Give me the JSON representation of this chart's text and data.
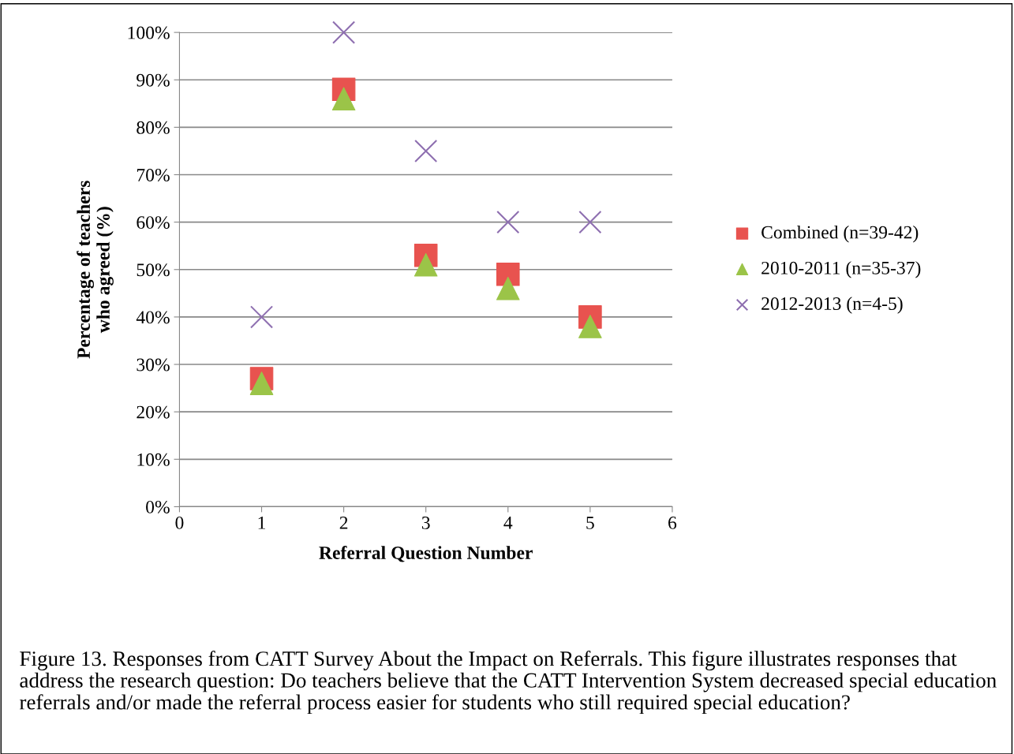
{
  "chart_data": {
    "type": "scatter",
    "xlabel": "Referral Question Number",
    "ylabel": "Percentage of teachers\nwho agreed (%)",
    "x": [
      1,
      2,
      3,
      4,
      5
    ],
    "series": [
      {
        "name": "Combined (n=39-42)",
        "color": "#e8534f",
        "marker": "square",
        "values": [
          27,
          88,
          53,
          49,
          40
        ]
      },
      {
        "name": "2010-2011 (n=35-37)",
        "color": "#9bc448",
        "marker": "triangle",
        "values": [
          26,
          86,
          51,
          46,
          38
        ]
      },
      {
        "name": "2012-2013 (n=4-5)",
        "color": "#8e6fb0",
        "marker": "cross",
        "values": [
          40,
          100,
          75,
          60,
          60
        ]
      }
    ],
    "xlim": [
      0,
      6
    ],
    "xticks": [
      0,
      1,
      2,
      3,
      4,
      5,
      6
    ],
    "ylim": [
      0,
      100
    ],
    "yticks": [
      {
        "value": 0,
        "label": "0%"
      },
      {
        "value": 10,
        "label": "10%"
      },
      {
        "value": 20,
        "label": "20%"
      },
      {
        "value": 30,
        "label": "30%"
      },
      {
        "value": 40,
        "label": "40%"
      },
      {
        "value": 50,
        "label": "50%"
      },
      {
        "value": 60,
        "label": "60%"
      },
      {
        "value": 70,
        "label": "70%"
      },
      {
        "value": 80,
        "label": "80%"
      },
      {
        "value": 90,
        "label": "90%"
      },
      {
        "value": 100,
        "label": "100%"
      }
    ],
    "grid": "y",
    "legend": "right",
    "annotations": [
      "Figure 13. Responses from CATT Survey About the Impact on Referrals. This figure illustrates responses that address the research question: Do teachers believe that the CATT Intervention System decreased special education referrals and/or made the referral process easier for students who still required special education?"
    ]
  }
}
